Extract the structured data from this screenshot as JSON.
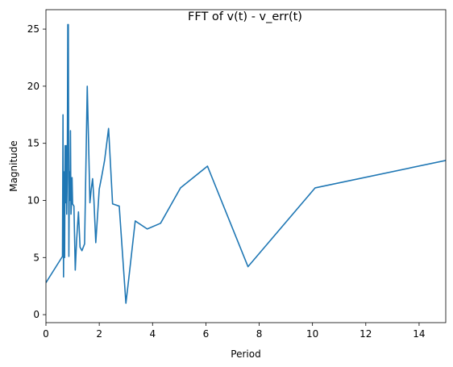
{
  "chart_data": {
    "type": "line",
    "title": "FFT of v(t) - v_err(t)",
    "xlabel": "Period",
    "ylabel": "Magnitude",
    "xlim": [
      0,
      15
    ],
    "ylim": [
      -0.7,
      26.7
    ],
    "xticks": [
      0,
      2,
      4,
      6,
      8,
      10,
      12,
      14
    ],
    "yticks": [
      0,
      5,
      10,
      15,
      20,
      25
    ],
    "grid": false,
    "legend": "none",
    "color": "#1f77b4",
    "series": [
      {
        "x": [
          0,
          0.62,
          0.64,
          0.66,
          0.68,
          0.7,
          0.72,
          0.74,
          0.76,
          0.78,
          0.8,
          0.82,
          0.84,
          0.86,
          0.88,
          0.9,
          0.92,
          0.94,
          0.96,
          0.98,
          1.0,
          1.05,
          1.1,
          1.15,
          1.22,
          1.28,
          1.35,
          1.45,
          1.55,
          1.6,
          1.65,
          1.7,
          1.75,
          1.8,
          1.87,
          2.0,
          2.1,
          2.2,
          2.35,
          2.5,
          2.75,
          3.0,
          3.1,
          3.35,
          3.8,
          4.3,
          5.05,
          6.06,
          7.58,
          10.1,
          15.0
        ],
        "y": [
          2.8,
          5.1,
          17.5,
          3.3,
          12.5,
          5.0,
          14.8,
          9.8,
          14.8,
          8.8,
          12.0,
          25.4,
          25.4,
          5.1,
          12.5,
          10.0,
          16.1,
          8.8,
          9.8,
          12.0,
          9.7,
          9.5,
          3.9,
          6.5,
          9.0,
          5.9,
          5.6,
          6.2,
          20.0,
          15.0,
          9.8,
          11.0,
          11.9,
          10.0,
          6.3,
          11.0,
          12.2,
          13.5,
          16.3,
          9.7,
          9.5,
          1.0,
          3.0,
          8.2,
          7.5,
          8.0,
          11.1,
          13.0,
          4.2,
          11.1,
          13.5
        ]
      }
    ]
  }
}
